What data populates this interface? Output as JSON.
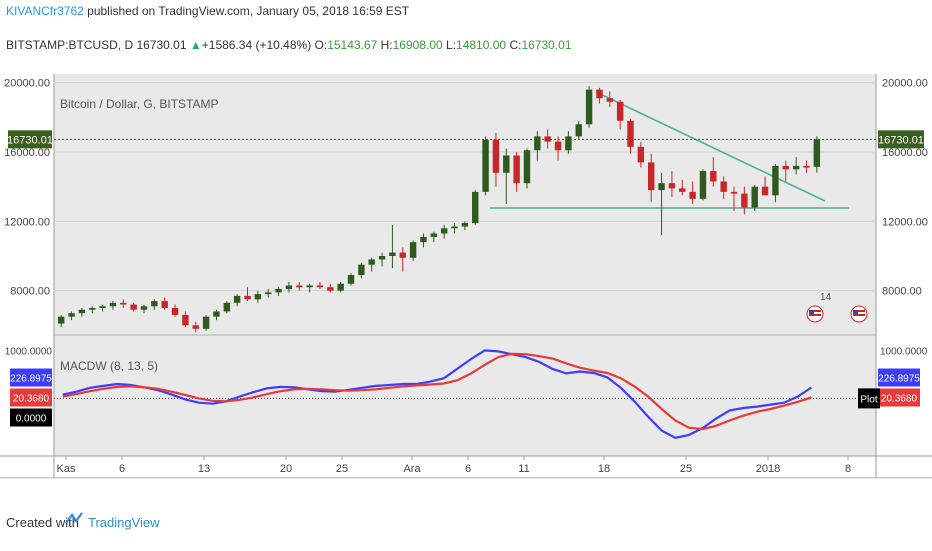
{
  "header": {
    "user": "KIVANCfr3762",
    "published": " published on TradingView.com, January 05, 2018 16:59 EST"
  },
  "symbol_line": {
    "symbol": "BITSTAMP:BTCUSD, D",
    "price": "16730.01",
    "change": "+1586.34 (+10.48%)",
    "o_label": "O:",
    "o": "15143.67",
    "h_label": "H:",
    "h": "16908.00",
    "l_label": "L:",
    "l": "14810.00",
    "c_label": "C:",
    "c": "16730.01"
  },
  "main_legend": "Bitcoin / Dollar, G, BITSTAMP",
  "macd_legend": "MACDW (8, 13, 5)",
  "footer": {
    "created": "Created with",
    "brand": "TradingView"
  },
  "chart_data": [
    {
      "type": "candlestick",
      "title": "Bitcoin / Dollar, G, BITSTAMP",
      "ylim": [
        5500,
        20500
      ],
      "yticks": [
        "20000.00",
        "16000.00",
        "12000.00",
        "8000.00"
      ],
      "ytick_values": [
        20000,
        16000,
        12000,
        8000
      ],
      "last_price_label": "16730.01",
      "last_price": 16730.01,
      "x_labels": [
        "Kas",
        "6",
        "13",
        "20",
        "25",
        "Ara",
        "6",
        "11",
        "18",
        "25",
        "2018",
        "8"
      ],
      "candles": [
        [
          6100,
          6600,
          5900,
          6500
        ],
        [
          6500,
          6800,
          6300,
          6700
        ],
        [
          6700,
          7000,
          6500,
          6900
        ],
        [
          6900,
          7100,
          6700,
          7000
        ],
        [
          7000,
          7200,
          6800,
          7100
        ],
        [
          7100,
          7400,
          6900,
          7300
        ],
        [
          7300,
          7500,
          7000,
          7200
        ],
        [
          7200,
          7300,
          6800,
          6900
        ],
        [
          6900,
          7200,
          6700,
          7100
        ],
        [
          7100,
          7500,
          6900,
          7400
        ],
        [
          7400,
          7600,
          6900,
          7000
        ],
        [
          7000,
          7200,
          6500,
          6600
        ],
        [
          6600,
          6800,
          5900,
          6000
        ],
        [
          6000,
          6200,
          5600,
          5800
        ],
        [
          5800,
          6600,
          5700,
          6500
        ],
        [
          6500,
          6900,
          6300,
          6800
        ],
        [
          6800,
          7400,
          6700,
          7300
        ],
        [
          7300,
          7800,
          7100,
          7700
        ],
        [
          7700,
          8200,
          7400,
          7500
        ],
        [
          7500,
          8000,
          7300,
          7800
        ],
        [
          7800,
          8100,
          7600,
          7900
        ],
        [
          7900,
          8200,
          7700,
          8100
        ],
        [
          8100,
          8500,
          7900,
          8300
        ],
        [
          8300,
          8500,
          8000,
          8200
        ],
        [
          8200,
          8400,
          7900,
          8300
        ],
        [
          8300,
          8500,
          8100,
          8200
        ],
        [
          8200,
          8400,
          7900,
          8000
        ],
        [
          8000,
          8500,
          7900,
          8400
        ],
        [
          8400,
          9000,
          8300,
          8900
        ],
        [
          8900,
          9600,
          8700,
          9500
        ],
        [
          9500,
          9900,
          9100,
          9800
        ],
        [
          9800,
          10200,
          9400,
          10000
        ],
        [
          10000,
          11800,
          9300,
          10200
        ],
        [
          10200,
          10500,
          9100,
          9900
        ],
        [
          9900,
          10900,
          9700,
          10800
        ],
        [
          10800,
          11300,
          10500,
          11100
        ],
        [
          11100,
          11400,
          10800,
          11300
        ],
        [
          11300,
          11800,
          11000,
          11600
        ],
        [
          11600,
          11900,
          11300,
          11700
        ],
        [
          11700,
          12000,
          11500,
          11900
        ],
        [
          11900,
          13800,
          11800,
          13700
        ],
        [
          13700,
          16900,
          13500,
          16700
        ],
        [
          16700,
          17100,
          14000,
          14800
        ],
        [
          14800,
          16200,
          13000,
          15800
        ],
        [
          15800,
          16000,
          13700,
          14200
        ],
        [
          14200,
          16200,
          13900,
          16100
        ],
        [
          16100,
          17200,
          15500,
          16900
        ],
        [
          16900,
          17300,
          16200,
          16600
        ],
        [
          16600,
          16900,
          15500,
          16100
        ],
        [
          16100,
          17200,
          15900,
          16900
        ],
        [
          16900,
          17800,
          16700,
          17600
        ],
        [
          17600,
          19800,
          17400,
          19600
        ],
        [
          19600,
          19700,
          18800,
          19100
        ],
        [
          19100,
          19500,
          18600,
          18900
        ],
        [
          18900,
          19000,
          17300,
          17800
        ],
        [
          17800,
          17900,
          15900,
          16300
        ],
        [
          16300,
          16600,
          15100,
          15400
        ],
        [
          15400,
          15900,
          13100,
          13800
        ],
        [
          13800,
          14800,
          11200,
          14200
        ],
        [
          14200,
          14900,
          13400,
          13900
        ],
        [
          13900,
          14400,
          13500,
          13700
        ],
        [
          13700,
          14300,
          13000,
          13300
        ],
        [
          13300,
          15000,
          13200,
          14900
        ],
        [
          14900,
          15700,
          14000,
          14300
        ],
        [
          14300,
          14600,
          13300,
          13700
        ],
        [
          13700,
          14000,
          12600,
          13600
        ],
        [
          13600,
          14000,
          12400,
          12800
        ],
        [
          12800,
          14100,
          12600,
          14000
        ],
        [
          14000,
          14600,
          13600,
          13500
        ],
        [
          13500,
          15300,
          13100,
          15200
        ],
        [
          15200,
          15500,
          14300,
          15000
        ],
        [
          15000,
          15700,
          14700,
          15200
        ],
        [
          15200,
          15500,
          14800,
          15100
        ],
        [
          15143.67,
          16908,
          14810,
          16730.01
        ]
      ]
    },
    {
      "type": "line",
      "title": "MACDW (8, 13, 5)",
      "ylim": [
        -1200,
        1300
      ],
      "yticks": [
        "1000.0000"
      ],
      "ytick_values": [
        1000
      ],
      "value_labels": [
        "226.8975",
        "20.3680",
        "0.0000"
      ],
      "label_values": [
        226.8975,
        20.368,
        0
      ],
      "badge": "Plot",
      "series": [
        {
          "color": "#3d3dff",
          "values": [
            80,
            140,
            220,
            260,
            300,
            280,
            230,
            170,
            80,
            -20,
            -90,
            -110,
            -60,
            40,
            130,
            210,
            240,
            230,
            190,
            150,
            140,
            180,
            220,
            260,
            280,
            300,
            300,
            350,
            420,
            620,
            820,
            1000,
            980,
            920,
            860,
            760,
            610,
            520,
            560,
            530,
            440,
            220,
            -60,
            -380,
            -670,
            -820,
            -760,
            -620,
            -420,
            -250,
            -200,
            -170,
            -130,
            -90,
            40,
            226.9
          ]
        },
        {
          "color": "#e83a3a",
          "values": [
            40,
            90,
            150,
            200,
            240,
            250,
            230,
            200,
            140,
            70,
            0,
            -50,
            -60,
            -30,
            20,
            90,
            150,
            190,
            200,
            190,
            170,
            160,
            170,
            190,
            220,
            250,
            270,
            290,
            310,
            380,
            520,
            700,
            860,
            930,
            920,
            880,
            830,
            730,
            640,
            580,
            530,
            420,
            250,
            40,
            -220,
            -460,
            -610,
            -640,
            -570,
            -460,
            -360,
            -280,
            -220,
            -150,
            -70,
            20.37
          ]
        }
      ]
    }
  ],
  "colors": {
    "up": "#2e5a1f",
    "down": "#c8272a",
    "trend": "#4caf99",
    "panel_bg": "#e9e9e9",
    "macd": "#3d3dff",
    "signal": "#e83a3a"
  },
  "icons": [
    "us-flag-earnings-icon",
    "us-flag-earnings-icon"
  ],
  "earnings_badge": "14"
}
